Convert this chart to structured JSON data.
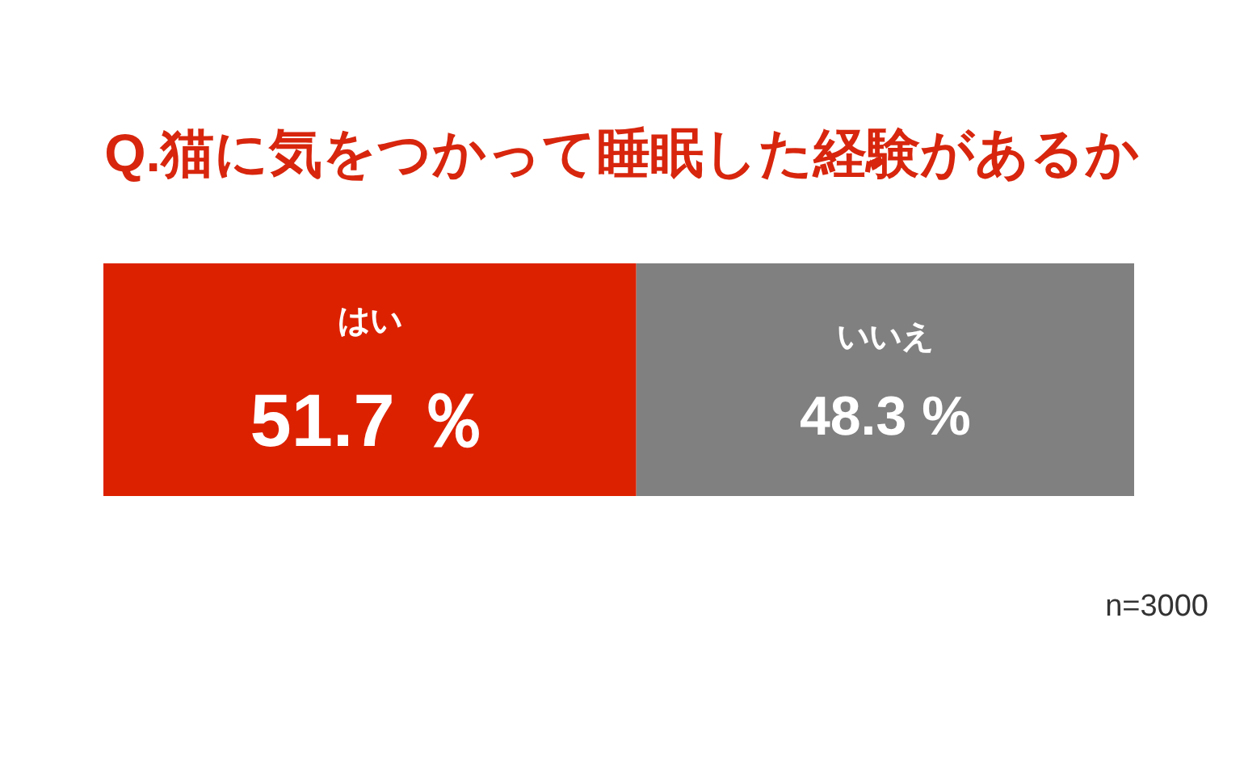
{
  "chart_data": {
    "type": "bar",
    "title": "Q.猫に気をつかって睡眠した経験があるか",
    "orientation": "horizontal",
    "stacked": true,
    "categories": [
      null
    ],
    "xlim": [
      0,
      100
    ],
    "series": [
      {
        "name": "はい",
        "color": "#dc2100",
        "values": [
          51.7
        ],
        "value_labels": [
          "51.7 ％"
        ]
      },
      {
        "name": "いいえ",
        "color": "#808080",
        "values": [
          48.3
        ],
        "value_labels": [
          "48.3 %"
        ]
      }
    ],
    "annotations": [
      "n=3000"
    ]
  }
}
